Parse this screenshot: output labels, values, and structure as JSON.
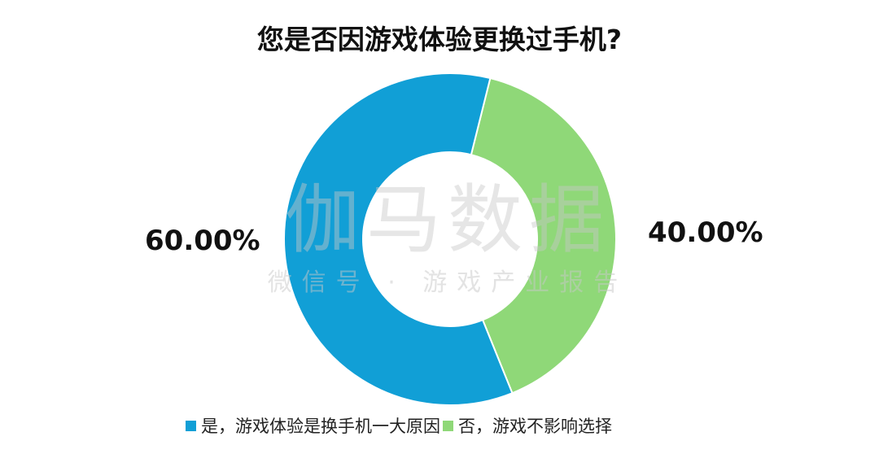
{
  "chart_data": {
    "type": "pie",
    "variant": "donut",
    "title": "您是否因游戏体验更换过手机?",
    "categories": [
      "是，游戏体验是换手机一大原因",
      "否，游戏不影响选择"
    ],
    "values": [
      60.0,
      40.0
    ],
    "data_labels": [
      "60.00%",
      "40.00%"
    ],
    "colors": [
      "#119fd6",
      "#8fd878"
    ],
    "legend_position": "bottom"
  },
  "watermark": {
    "line1": "伽马数据",
    "line2": "微信号 · 游戏产业报告"
  }
}
